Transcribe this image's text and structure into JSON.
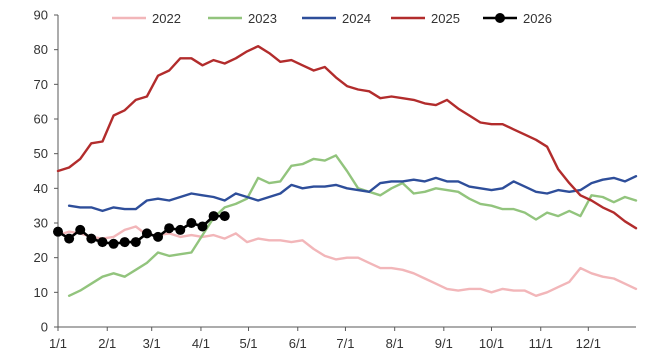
{
  "chart_data": {
    "type": "line",
    "title": "",
    "xlabel": "",
    "ylabel": "",
    "ylim": [
      0,
      90
    ],
    "yticks": [
      0,
      10,
      20,
      30,
      40,
      50,
      60,
      70,
      80,
      90
    ],
    "xlim": [
      1,
      53
    ],
    "xticks": [
      {
        "week": 1,
        "label": "1/1"
      },
      {
        "week": 5.43,
        "label": "2/1"
      },
      {
        "week": 9.43,
        "label": "3/1"
      },
      {
        "week": 13.86,
        "label": "4/1"
      },
      {
        "week": 18.14,
        "label": "5/1"
      },
      {
        "week": 22.57,
        "label": "6/1"
      },
      {
        "week": 26.86,
        "label": "7/1"
      },
      {
        "week": 31.29,
        "label": "8/1"
      },
      {
        "week": 35.71,
        "label": "9/1"
      },
      {
        "week": 40.0,
        "label": "10/1"
      },
      {
        "week": 44.43,
        "label": "11/1"
      },
      {
        "week": 48.71,
        "label": "12/1"
      }
    ],
    "x_unit": "week of year",
    "grid": false,
    "legend_position": "top",
    "series": [
      {
        "name": "2022",
        "color": "#f2b6b9",
        "markers": false,
        "x": [
          1,
          2,
          3,
          4,
          5,
          6,
          7,
          8,
          9,
          10,
          11,
          12,
          13,
          14,
          15,
          16,
          17,
          18,
          19,
          20,
          21,
          22,
          23,
          24,
          25,
          26,
          27,
          28,
          29,
          30,
          31,
          32,
          33,
          34,
          35,
          36,
          37,
          38,
          39,
          40,
          41,
          42,
          43,
          44,
          45,
          46,
          47,
          48,
          49,
          50,
          51,
          52,
          53
        ],
        "values": [
          26.5,
          27.5,
          27.0,
          26.0,
          25.5,
          26.0,
          28.0,
          29.0,
          26.5,
          26.5,
          27.0,
          26.0,
          26.5,
          26.0,
          26.5,
          25.5,
          27.0,
          24.5,
          25.5,
          25.0,
          25.0,
          24.5,
          25.0,
          22.5,
          20.5,
          19.5,
          20.0,
          20.0,
          18.5,
          17.0,
          17.0,
          16.5,
          15.5,
          14.0,
          12.5,
          11.0,
          10.5,
          11.0,
          11.0,
          10.0,
          11.0,
          10.5,
          10.5,
          9.0,
          10.0,
          11.5,
          13.0,
          17.0,
          15.5,
          14.5,
          14.0,
          12.5,
          11.0
        ]
      },
      {
        "name": "2023",
        "color": "#92c47d",
        "markers": false,
        "x": [
          2,
          3,
          4,
          5,
          6,
          7,
          8,
          9,
          10,
          11,
          12,
          13,
          14,
          15,
          16,
          17,
          18,
          19,
          20,
          21,
          22,
          23,
          24,
          25,
          26,
          27,
          28,
          29,
          30,
          31,
          32,
          33,
          34,
          35,
          36,
          37,
          38,
          39,
          40,
          41,
          42,
          43,
          44,
          45,
          46,
          47,
          48,
          49,
          50,
          51,
          52,
          53
        ],
        "values": [
          9.0,
          10.5,
          12.5,
          14.5,
          15.5,
          14.5,
          16.5,
          18.5,
          21.5,
          20.5,
          21.0,
          21.5,
          26.5,
          31.5,
          34.5,
          35.5,
          37.0,
          43.0,
          41.5,
          42.0,
          46.5,
          47.0,
          48.5,
          48.0,
          49.5,
          45.0,
          40.0,
          39.0,
          38.0,
          40.0,
          41.5,
          38.5,
          39.0,
          40.0,
          39.5,
          39.0,
          37.0,
          35.5,
          35.0,
          34.0,
          34.0,
          33.0,
          31.0,
          33.0,
          32.0,
          33.5,
          32.0,
          38.0,
          37.5,
          36.0,
          37.5,
          36.5
        ]
      },
      {
        "name": "2024",
        "color": "#2e4e9a",
        "markers": false,
        "x": [
          2,
          3,
          4,
          5,
          6,
          7,
          8,
          9,
          10,
          11,
          12,
          13,
          14,
          15,
          16,
          17,
          18,
          19,
          20,
          21,
          22,
          23,
          24,
          25,
          26,
          27,
          28,
          29,
          30,
          31,
          32,
          33,
          34,
          35,
          36,
          37,
          38,
          39,
          40,
          41,
          42,
          43,
          44,
          45,
          46,
          47,
          48,
          49,
          50,
          51,
          52,
          53
        ],
        "values": [
          35.0,
          34.5,
          34.5,
          33.5,
          34.5,
          34.0,
          34.0,
          36.5,
          37.0,
          36.5,
          37.5,
          38.5,
          38.0,
          37.5,
          36.5,
          38.5,
          37.5,
          36.5,
          37.5,
          38.5,
          41.0,
          40.0,
          40.5,
          40.5,
          41.0,
          40.0,
          39.5,
          39.0,
          41.5,
          42.0,
          42.0,
          42.5,
          42.0,
          43.0,
          42.0,
          42.0,
          40.5,
          40.0,
          39.5,
          40.0,
          42.0,
          40.5,
          39.0,
          38.5,
          39.5,
          39.0,
          39.5,
          41.5,
          42.5,
          43.0,
          42.0,
          43.5
        ]
      },
      {
        "name": "2025",
        "color": "#b22c2c",
        "markers": false,
        "x": [
          1,
          2,
          3,
          4,
          5,
          6,
          7,
          8,
          9,
          10,
          11,
          12,
          13,
          14,
          15,
          16,
          17,
          18,
          19,
          20,
          21,
          22,
          23,
          24,
          25,
          26,
          27,
          28,
          29,
          30,
          31,
          32,
          33,
          34,
          35,
          36,
          37,
          38,
          39,
          40,
          41,
          42,
          43,
          44,
          45,
          46,
          47,
          48,
          49,
          50,
          51,
          52,
          53
        ],
        "values": [
          45.0,
          46.0,
          48.5,
          53.0,
          53.5,
          61.0,
          62.5,
          65.5,
          66.5,
          72.5,
          74.0,
          77.5,
          77.5,
          75.5,
          77.0,
          76.0,
          77.5,
          79.5,
          81.0,
          79.0,
          76.5,
          77.0,
          75.5,
          74.0,
          75.0,
          72.0,
          69.5,
          68.5,
          68.0,
          66.0,
          66.5,
          66.0,
          65.5,
          64.5,
          64.0,
          65.5,
          63.0,
          61.0,
          59.0,
          58.5,
          58.5,
          57.0,
          55.5,
          54.0,
          52.0,
          45.5,
          41.5,
          38.0,
          36.5,
          34.5,
          33.0,
          30.5,
          28.5
        ]
      },
      {
        "name": "2026",
        "color": "#000000",
        "markers": true,
        "x": [
          1,
          2,
          3,
          4,
          5,
          6,
          7,
          8,
          9,
          10,
          11,
          12,
          13,
          14,
          15,
          16
        ],
        "values": [
          27.5,
          25.5,
          28.0,
          25.5,
          24.5,
          24.0,
          24.5,
          24.5,
          27.0,
          26.0,
          28.5,
          28.0,
          30.0,
          29.0,
          32.0,
          32.0
        ]
      }
    ]
  }
}
